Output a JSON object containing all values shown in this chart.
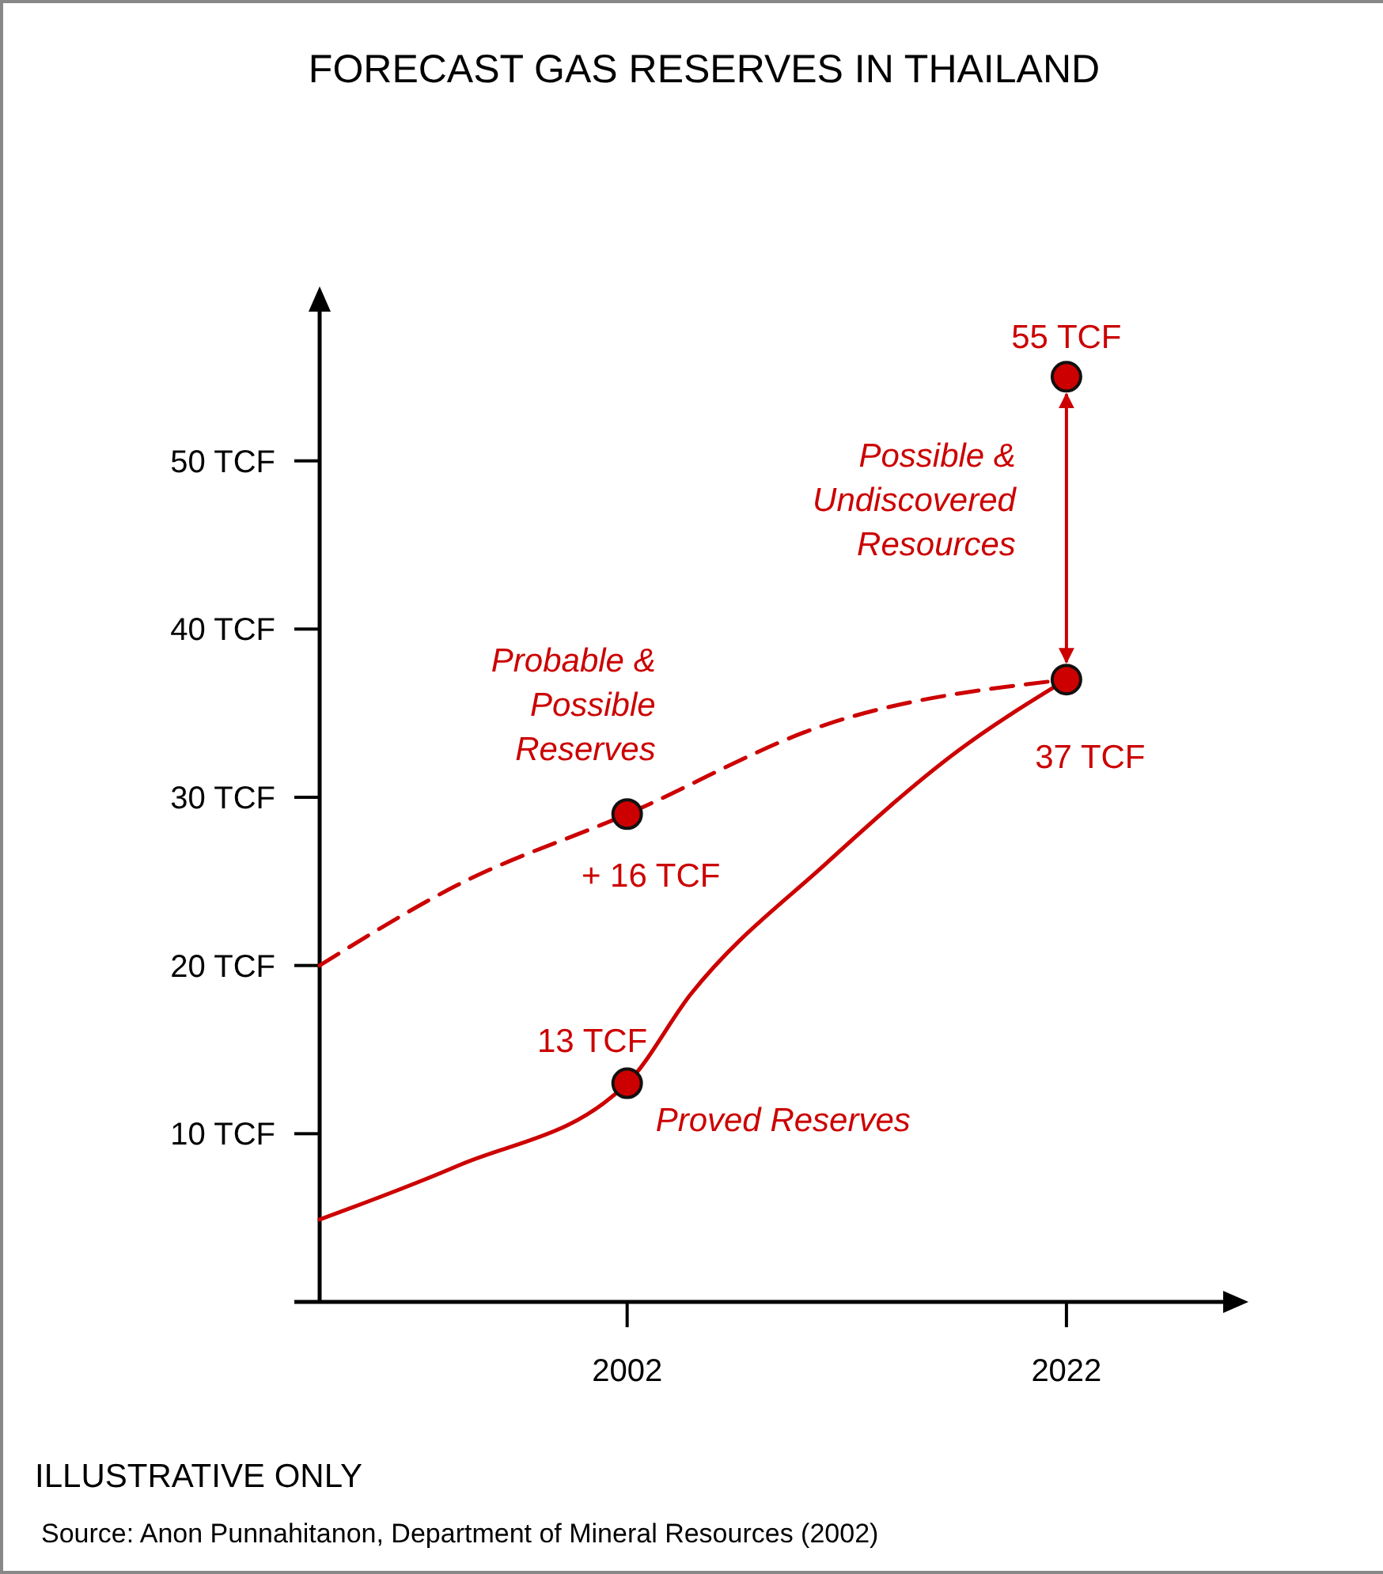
{
  "chart_data": {
    "type": "line",
    "title": "FORECAST GAS RESERVES IN THAILAND",
    "xlim": [
      1988,
      2030
    ],
    "xticks": [
      2002,
      2022
    ],
    "ylim": [
      0,
      60
    ],
    "yticks": [
      {
        "value": 10,
        "label": "10 TCF"
      },
      {
        "value": 20,
        "label": "20 TCF"
      },
      {
        "value": 30,
        "label": "30 TCF"
      },
      {
        "value": 40,
        "label": "40 TCF"
      },
      {
        "value": 50,
        "label": "50 TCF"
      }
    ],
    "grid": false,
    "series": [
      {
        "name": "Proved Reserves",
        "color": "#cc0000",
        "line_style": "solid",
        "x": [
          1988,
          1994.3,
          2002,
          2004.9,
          2011,
          2017.1,
          2022
        ],
        "values": [
          4.9,
          8.1,
          13,
          18.3,
          26,
          32.8,
          37
        ]
      },
      {
        "name": "Probable & Possible Reserves",
        "color": "#cc0000",
        "line_style": "dashed",
        "x": [
          1988,
          1994.3,
          2002,
          2011,
          2022
        ],
        "values": [
          20,
          24.8,
          29,
          34.3,
          37
        ]
      },
      {
        "type": "scatter",
        "color": "#cc0000",
        "marker": "circle",
        "x": [
          2002,
          2002,
          2022,
          2022
        ],
        "values": [
          13,
          29,
          37,
          55
        ],
        "value_labels": [
          "13 TCF",
          null,
          "37 TCF",
          "55 TCF"
        ]
      }
    ],
    "annotations": [
      "+ 16 TCF",
      "Possible & Undiscovered Resources",
      "ILLUSTRATIVE ONLY",
      "Source: Anon Punnahitanon, Department of Mineral Resources (2002)"
    ]
  }
}
